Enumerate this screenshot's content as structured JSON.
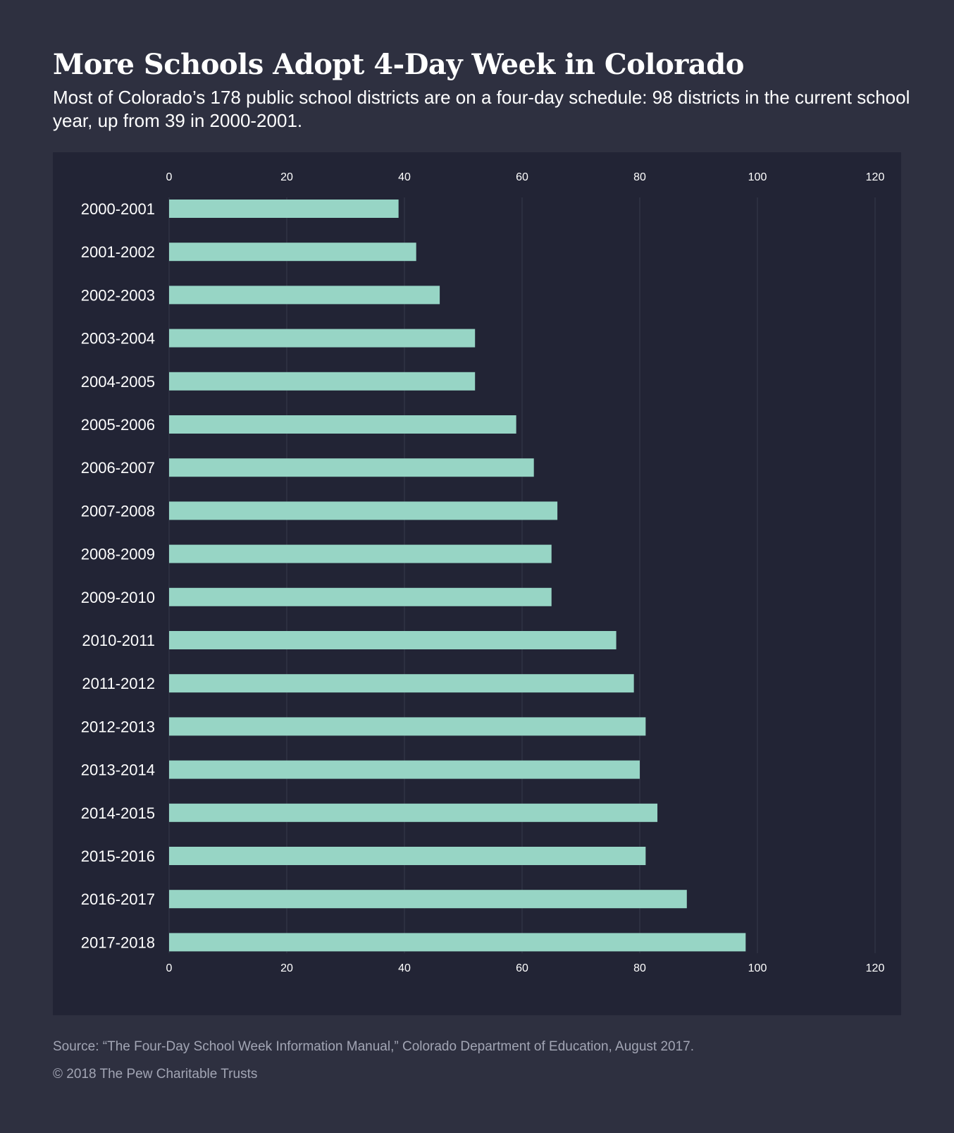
{
  "header": {
    "title": "More Schools Adopt 4-Day Week in Colorado",
    "subtitle": "Most of Colorado’s 178 public school districts are on a four-day schedule: 98 districts in the current school year, up from 39 in 2000-2001."
  },
  "footer": {
    "source": "Source: “The Four-Day School Week Information Manual,” Colorado Department of Education, August 2017.",
    "copyright": "© 2018 The Pew Charitable Trusts"
  },
  "colors": {
    "background": "#2e3040",
    "panel": "#222435",
    "bar": "#97d5c5",
    "grid": "#363a4b"
  },
  "chart_data": {
    "type": "bar",
    "orientation": "horizontal",
    "categories": [
      "2000-2001",
      "2001-2002",
      "2002-2003",
      "2003-2004",
      "2004-2005",
      "2005-2006",
      "2006-2007",
      "2007-2008",
      "2008-2009",
      "2009-2010",
      "2010-2011",
      "2011-2012",
      "2012-2013",
      "2013-2014",
      "2014-2015",
      "2015-2016",
      "2016-2017",
      "2017-2018"
    ],
    "values": [
      39,
      42,
      46,
      52,
      52,
      59,
      62,
      66,
      65,
      65,
      76,
      79,
      81,
      80,
      83,
      81,
      88,
      98
    ],
    "xticks": [
      0,
      20,
      40,
      60,
      80,
      100,
      120
    ],
    "xlim": [
      0,
      120
    ],
    "grid": true,
    "axis_labels_position": "top-and-bottom",
    "legend": "none"
  }
}
